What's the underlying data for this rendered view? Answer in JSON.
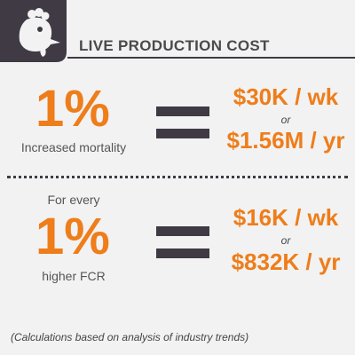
{
  "header": {
    "title": "LIVE PRODUCTION COST",
    "badge_icon": "chicken-icon",
    "badge_color": "#3f3a44"
  },
  "rows": [
    {
      "prefix": "",
      "percent": "1%",
      "caption": "Increased mortality",
      "value_week": "$30K / wk",
      "or": "or",
      "value_year": "$1.56M / yr"
    },
    {
      "prefix": "For every",
      "percent": "1%",
      "caption": "higher FCR",
      "value_week": "$16K / wk",
      "or": "or",
      "value_year": "$832K / yr"
    }
  ],
  "footnote": "(Calculations based on analysis of industry trends)",
  "colors": {
    "accent": "#ee7d1a",
    "dark": "#3f3a44",
    "background": "#f2f2f2"
  }
}
